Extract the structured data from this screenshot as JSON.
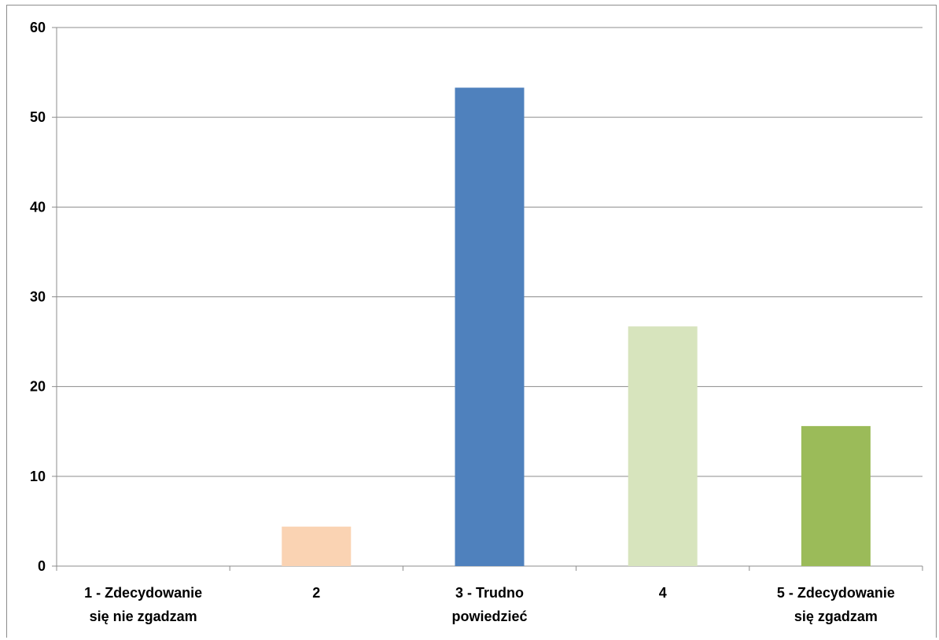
{
  "chart_data": {
    "type": "bar",
    "title": "",
    "xlabel": "",
    "ylabel": "",
    "ylim": [
      0,
      60
    ],
    "yticks": [
      "0",
      "10",
      "20",
      "30",
      "40",
      "50",
      "60"
    ],
    "grid": true,
    "legend": "none",
    "categories": [
      [
        "1 - Zdecydowanie",
        "się nie zgadzam"
      ],
      [
        "2"
      ],
      [
        "3 - Trudno",
        "powiedzieć"
      ],
      [
        "4"
      ],
      [
        "5 - Zdecydowanie",
        "się zgadzam"
      ]
    ],
    "values": [
      0,
      4.4,
      53.3,
      26.7,
      15.6
    ],
    "colors": [
      "#FAD3B3",
      "#FAD3B3",
      "#4F81BD",
      "#D7E4BD",
      "#9BBB59"
    ]
  }
}
